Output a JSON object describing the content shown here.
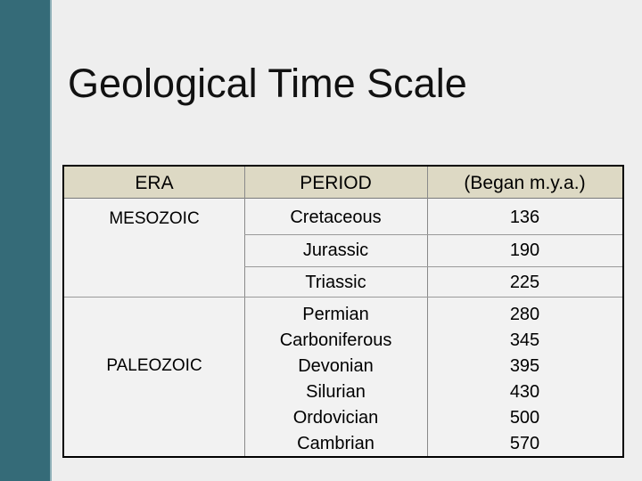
{
  "title": "Geological Time Scale",
  "table": {
    "headers": [
      "ERA",
      "PERIOD",
      "(Began m.y.a.)"
    ],
    "eras": [
      {
        "name": "MESOZOIC",
        "periods": [
          {
            "name": "Cretaceous",
            "began": "136"
          },
          {
            "name": "Jurassic",
            "began": "190"
          },
          {
            "name": "Triassic",
            "began": "225"
          }
        ]
      },
      {
        "name": "PALEOZOIC",
        "periods": [
          {
            "name": "Permian",
            "began": "280"
          },
          {
            "name": "Carboniferous",
            "began": "345"
          },
          {
            "name": "Devonian",
            "began": "395"
          },
          {
            "name": "Silurian",
            "began": "430"
          },
          {
            "name": "Ordovician",
            "began": "500"
          },
          {
            "name": "Cambrian",
            "began": "570"
          }
        ]
      }
    ]
  },
  "colors": {
    "side_bar": "#356b78",
    "header_bg": "#ddd9c4",
    "background": "#eeeeee"
  }
}
